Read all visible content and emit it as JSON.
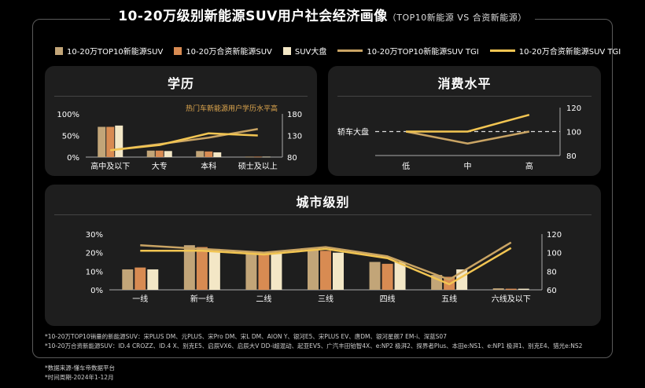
{
  "header": {
    "title": "10-20万级别新能源SUV用户社会经济画像",
    "subtitle": "（TOP10新能源 VS 合资新能源）"
  },
  "legend": [
    {
      "label": "10-20万TOP10新能源SUV",
      "kind": "bar",
      "color": "#c2a578"
    },
    {
      "label": "10-20万合资新能源SUV",
      "kind": "bar",
      "color": "#d88b52"
    },
    {
      "label": "SUV大盘",
      "kind": "bar",
      "color": "#f3e7c6"
    },
    {
      "label": "10-20万TOP10新能源SUV TGI",
      "kind": "line",
      "color": "#c9a464"
    },
    {
      "label": "10-20万合资新能源SUV TGI",
      "kind": "line",
      "color": "#f2c552"
    }
  ],
  "panels": {
    "education": {
      "title": "学历",
      "annotation": "热门车新能源用户学历水平高"
    },
    "consumption": {
      "title": "消费水平",
      "baseline_label": "轿车大盘"
    },
    "city": {
      "title": "城市级别"
    }
  },
  "chart_data": [
    {
      "type": "bar",
      "title": "学历",
      "categories": [
        "高中及以下",
        "大专",
        "本科",
        "硕士及以上"
      ],
      "series": [
        {
          "name": "10-20万TOP10新能源SUV",
          "values": [
            70,
            15,
            14,
            1
          ]
        },
        {
          "name": "10-20万合资新能源SUV",
          "values": [
            70,
            15,
            13,
            1
          ]
        },
        {
          "name": "SUV大盘",
          "values": [
            73,
            14,
            11,
            1
          ]
        }
      ],
      "line_series": [
        {
          "name": "10-20万TOP10新能源SUV TGI",
          "values": [
            96,
            110,
            125,
            145
          ]
        },
        {
          "name": "10-20万合资新能源SUV TGI",
          "values": [
            96,
            108,
            135,
            130
          ]
        }
      ],
      "ylim": [
        0,
        100
      ],
      "yticks": [
        "100%",
        "50%",
        "0%"
      ],
      "y2lim": [
        80,
        180
      ],
      "y2ticks": [
        "180",
        "130",
        "80"
      ]
    },
    {
      "type": "line",
      "title": "消费水平",
      "categories": [
        "低",
        "中",
        "高"
      ],
      "series": [
        {
          "name": "10-20万TOP10新能源SUV TGI",
          "values": [
            100,
            90,
            100
          ]
        },
        {
          "name": "10-20万合资新能源SUV TGI",
          "values": [
            100,
            100,
            114
          ]
        }
      ],
      "baseline": 100,
      "ylim": [
        80,
        120
      ],
      "yticks": [
        "120",
        "100",
        "80"
      ]
    },
    {
      "type": "bar",
      "title": "城市级别",
      "categories": [
        "一线",
        "新一线",
        "二线",
        "三线",
        "四线",
        "五线",
        "六线及以下"
      ],
      "series": [
        {
          "name": "10-20万TOP10新能源SUV",
          "values": [
            11,
            24,
            20,
            22,
            15,
            8,
            0.8
          ]
        },
        {
          "name": "10-20万合资新能源SUV",
          "values": [
            12,
            23,
            20,
            21,
            14,
            7,
            0.6
          ]
        },
        {
          "name": "SUV大盘",
          "values": [
            11,
            22,
            20,
            20,
            15,
            11,
            0.6
          ]
        }
      ],
      "line_series": [
        {
          "name": "10-20万TOP10新能源SUV TGI",
          "values": [
            108,
            104,
            100,
            106,
            96,
            71,
            111
          ]
        },
        {
          "name": "10-20万合资新能源SUV TGI",
          "values": [
            102,
            102,
            98,
            104,
            94,
            66,
            105
          ]
        }
      ],
      "ylim": [
        0,
        30
      ],
      "yticks": [
        "30%",
        "20%",
        "10%",
        "0%"
      ],
      "y2lim": [
        60,
        120
      ],
      "y2ticks": [
        "120",
        "100",
        "80",
        "60"
      ]
    }
  ],
  "notes": [
    "*10-20万TOP10销量的新能源SUV：宋PLUS DM、元PLUS、宋Pro DM、宋L DM、AION Y、银河E5、宋PLUS EV、唐DM、银河星舰7 EM-i、深蓝S07",
    "*10-20万合资新能源SUV：ID.4 CROZZ、ID.4 X、别克E5、启辰VX6、启辰大V DD-i超混动、起亚EV5、广汽丰田铂智4X、e:NP2 极湃2、探界者Plus、本田e:NS1、e:NP1 极湃1、别克E4、猎光e:NS2"
  ],
  "footer": [
    "*数据来源-懂车帝数据平台",
    "*时间周期-2024年1-12月"
  ]
}
